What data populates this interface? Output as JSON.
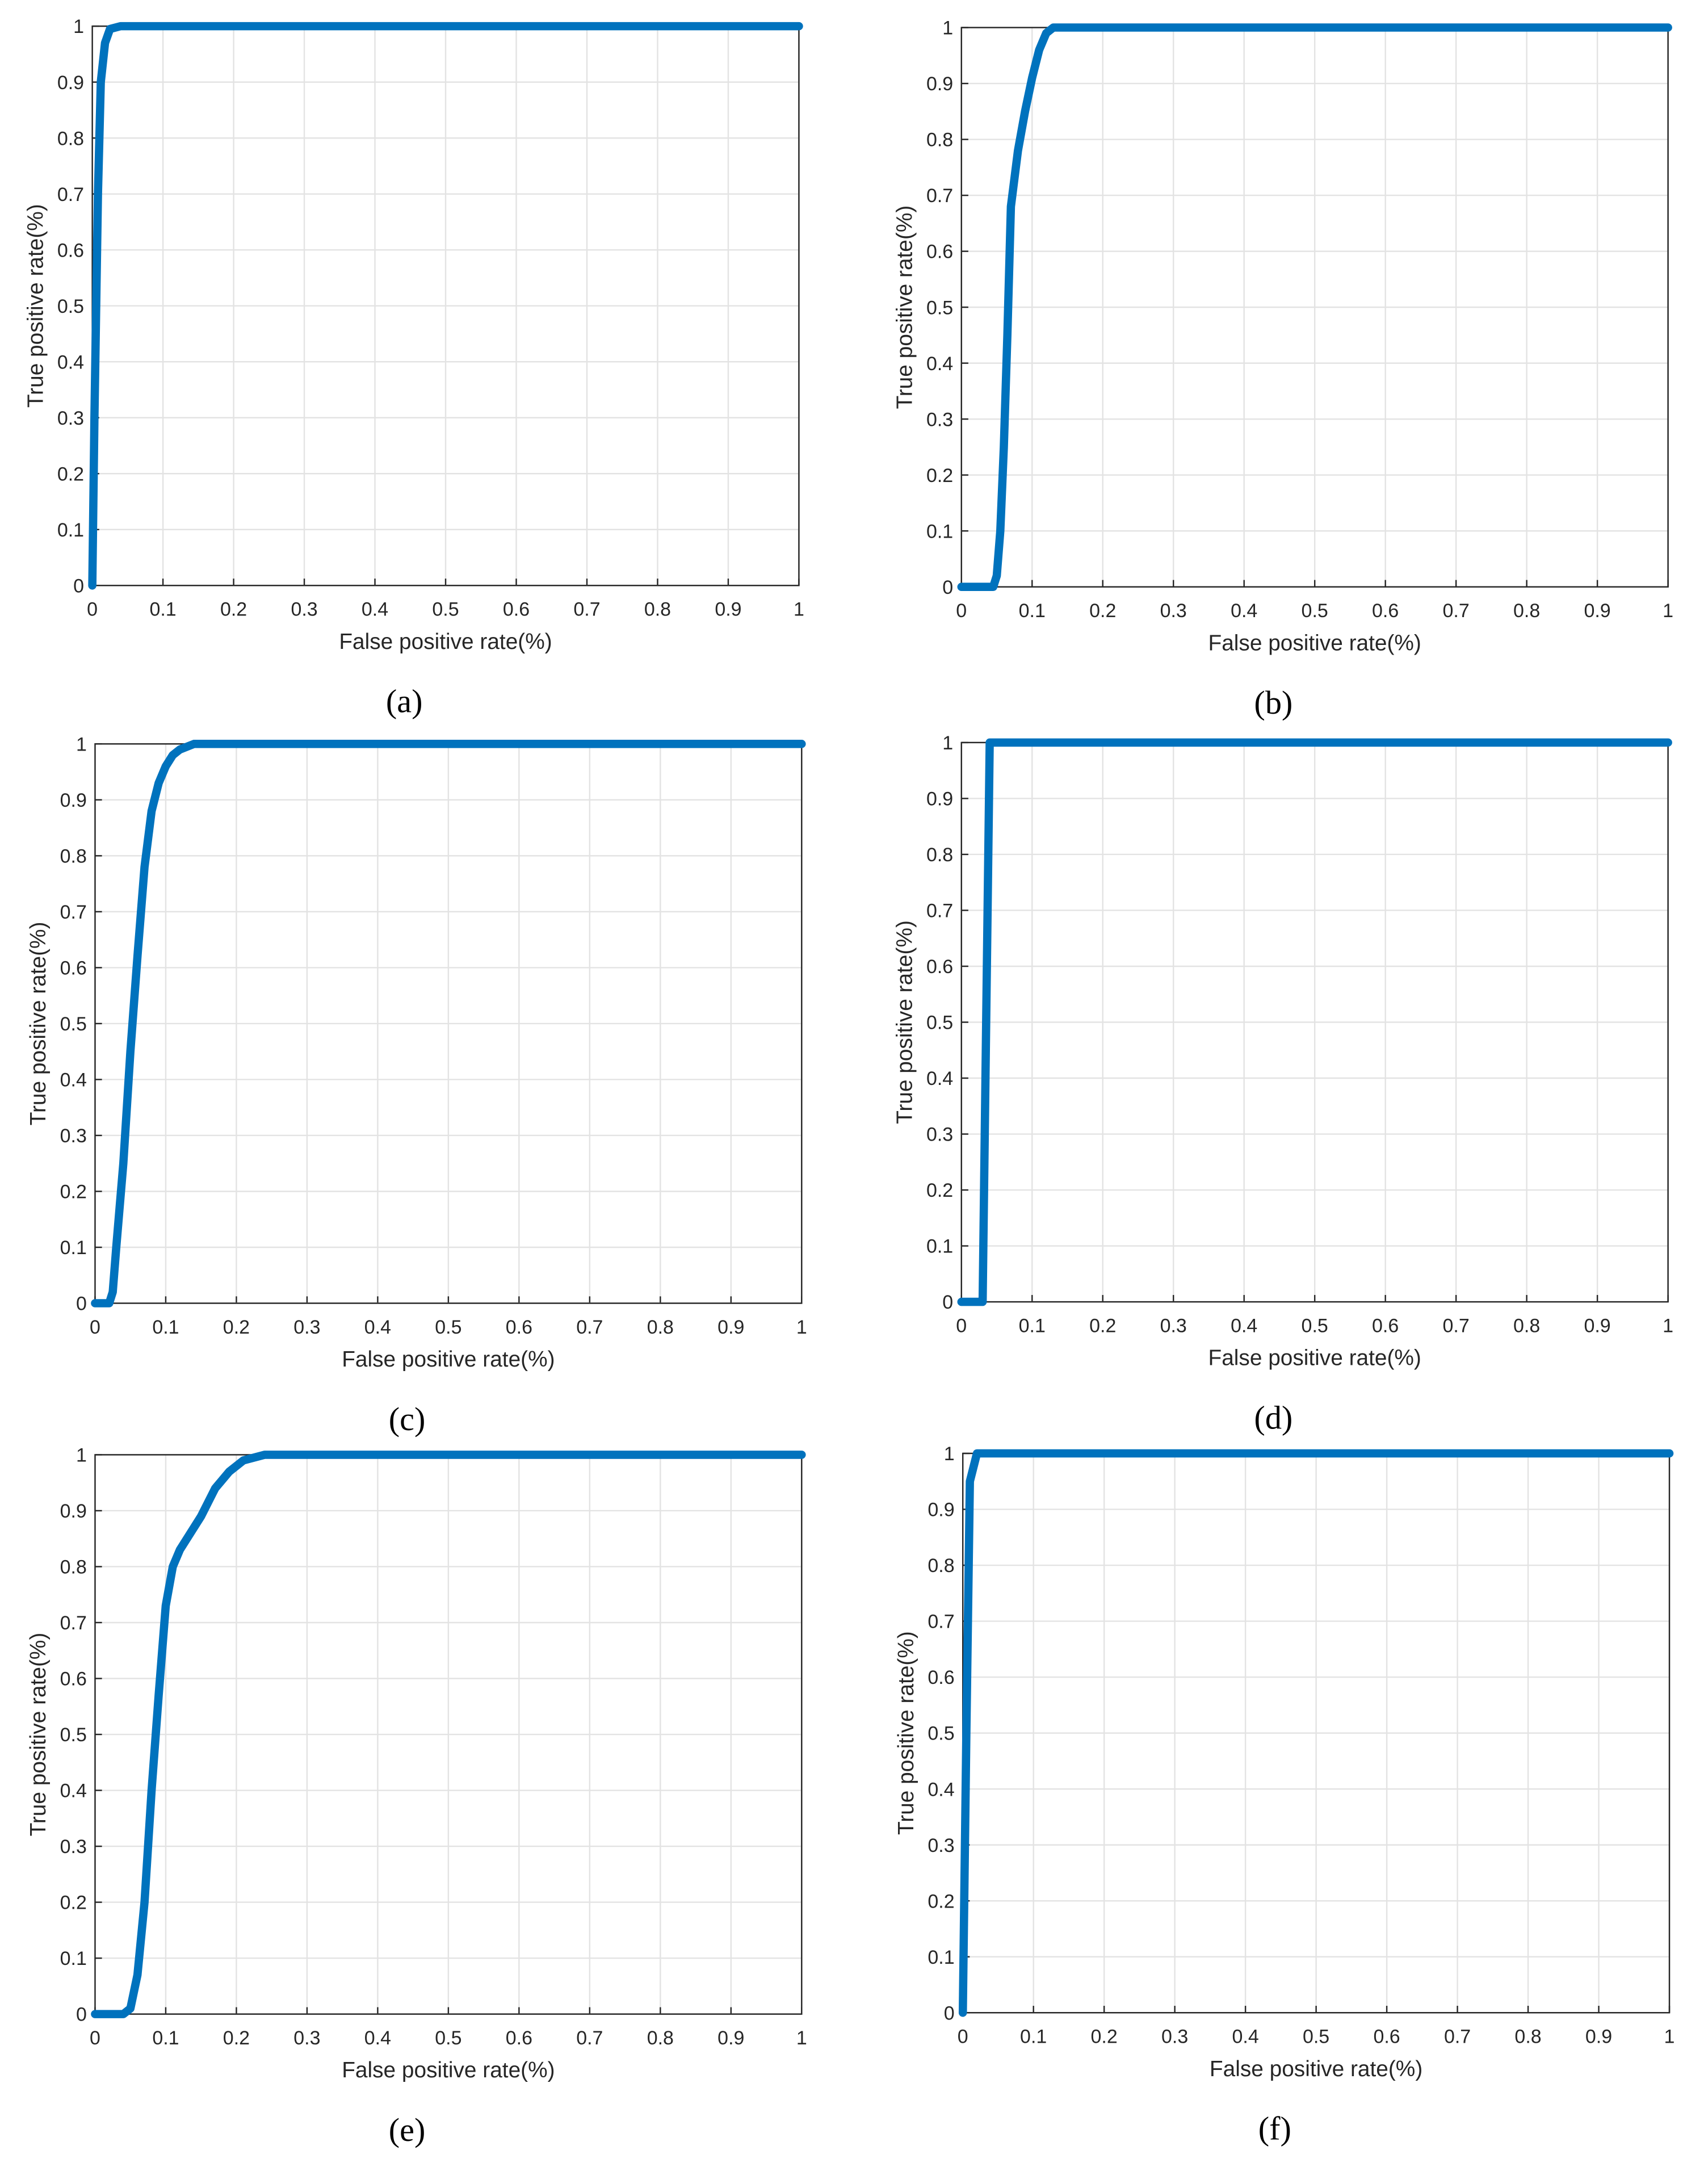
{
  "chart_data": [
    {
      "type": "line",
      "caption": "(a)",
      "xlabel": "False positive rate(%)",
      "ylabel": "True positive rate(%)",
      "color": "#0072bd",
      "grid": true,
      "xlim": [
        0,
        1
      ],
      "ylim": [
        0,
        1
      ],
      "xticks": [
        0,
        0.1,
        0.2,
        0.3,
        0.4,
        0.5,
        0.6,
        0.7,
        0.8,
        0.9,
        1
      ],
      "yticks": [
        0,
        0.1,
        0.2,
        0.3,
        0.4,
        0.5,
        0.6,
        0.7,
        0.8,
        0.9,
        1
      ],
      "x": [
        0,
        0.003,
        0.008,
        0.012,
        0.018,
        0.025,
        0.04,
        1
      ],
      "values": [
        0,
        0.3,
        0.7,
        0.9,
        0.97,
        0.995,
        1,
        1
      ]
    },
    {
      "type": "line",
      "caption": "(b)",
      "xlabel": "False positive rate(%)",
      "ylabel": "True positive rate(%)",
      "color": "#0072bd",
      "grid": true,
      "xlim": [
        0,
        1
      ],
      "ylim": [
        0,
        1
      ],
      "xticks": [
        0,
        0.1,
        0.2,
        0.3,
        0.4,
        0.5,
        0.6,
        0.7,
        0.8,
        0.9,
        1
      ],
      "yticks": [
        0,
        0.1,
        0.2,
        0.3,
        0.4,
        0.5,
        0.6,
        0.7,
        0.8,
        0.9,
        1
      ],
      "x": [
        0,
        0.045,
        0.05,
        0.055,
        0.06,
        0.065,
        0.07,
        0.08,
        0.09,
        0.1,
        0.11,
        0.12,
        0.13,
        0.15,
        1
      ],
      "values": [
        0,
        0,
        0.02,
        0.1,
        0.25,
        0.45,
        0.68,
        0.78,
        0.85,
        0.91,
        0.96,
        0.99,
        1,
        1,
        1
      ]
    },
    {
      "type": "line",
      "caption": "(c)",
      "xlabel": "False positive rate(%)",
      "ylabel": "True positive rate(%)",
      "color": "#0072bd",
      "grid": true,
      "xlim": [
        0,
        1
      ],
      "ylim": [
        0,
        1
      ],
      "xticks": [
        0,
        0.1,
        0.2,
        0.3,
        0.4,
        0.5,
        0.6,
        0.7,
        0.8,
        0.9,
        1
      ],
      "yticks": [
        0,
        0.1,
        0.2,
        0.3,
        0.4,
        0.5,
        0.6,
        0.7,
        0.8,
        0.9,
        1
      ],
      "x": [
        0,
        0.02,
        0.025,
        0.03,
        0.04,
        0.05,
        0.06,
        0.07,
        0.08,
        0.09,
        0.1,
        0.11,
        0.12,
        0.14,
        0.16,
        1
      ],
      "values": [
        0,
        0,
        0.02,
        0.1,
        0.25,
        0.45,
        0.62,
        0.78,
        0.88,
        0.93,
        0.96,
        0.98,
        0.99,
        1,
        1,
        1
      ]
    },
    {
      "type": "line",
      "caption": "(d)",
      "xlabel": "False positive rate(%)",
      "ylabel": "True positive rate(%)",
      "color": "#0072bd",
      "grid": true,
      "xlim": [
        0,
        1
      ],
      "ylim": [
        0,
        1
      ],
      "xticks": [
        0,
        0.1,
        0.2,
        0.3,
        0.4,
        0.5,
        0.6,
        0.7,
        0.8,
        0.9,
        1
      ],
      "yticks": [
        0,
        0.1,
        0.2,
        0.3,
        0.4,
        0.5,
        0.6,
        0.7,
        0.8,
        0.9,
        1
      ],
      "x": [
        0,
        0.03,
        0.04,
        1
      ],
      "values": [
        0,
        0,
        1,
        1
      ]
    },
    {
      "type": "line",
      "caption": "(e)",
      "xlabel": "False positive rate(%)",
      "ylabel": "True positive rate(%)",
      "color": "#0072bd",
      "grid": true,
      "xlim": [
        0,
        1
      ],
      "ylim": [
        0,
        1
      ],
      "xticks": [
        0,
        0.1,
        0.2,
        0.3,
        0.4,
        0.5,
        0.6,
        0.7,
        0.8,
        0.9,
        1
      ],
      "yticks": [
        0,
        0.1,
        0.2,
        0.3,
        0.4,
        0.5,
        0.6,
        0.7,
        0.8,
        0.9,
        1
      ],
      "x": [
        0,
        0.04,
        0.05,
        0.06,
        0.07,
        0.08,
        0.09,
        0.1,
        0.11,
        0.12,
        0.15,
        0.17,
        0.19,
        0.21,
        0.24,
        1
      ],
      "values": [
        0,
        0,
        0.01,
        0.07,
        0.2,
        0.4,
        0.57,
        0.73,
        0.8,
        0.83,
        0.89,
        0.94,
        0.97,
        0.99,
        1,
        1
      ]
    },
    {
      "type": "line",
      "caption": "(f)",
      "xlabel": "False positive rate(%)",
      "ylabel": "True positive rate(%)",
      "color": "#0072bd",
      "grid": true,
      "xlim": [
        0,
        1
      ],
      "ylim": [
        0,
        1
      ],
      "xticks": [
        0,
        0.1,
        0.2,
        0.3,
        0.4,
        0.5,
        0.6,
        0.7,
        0.8,
        0.9,
        1
      ],
      "yticks": [
        0,
        0.1,
        0.2,
        0.3,
        0.4,
        0.5,
        0.6,
        0.7,
        0.8,
        0.9,
        1
      ],
      "x": [
        0,
        0.005,
        0.01,
        0.02,
        1
      ],
      "values": [
        0,
        0.5,
        0.95,
        1,
        1
      ]
    }
  ]
}
